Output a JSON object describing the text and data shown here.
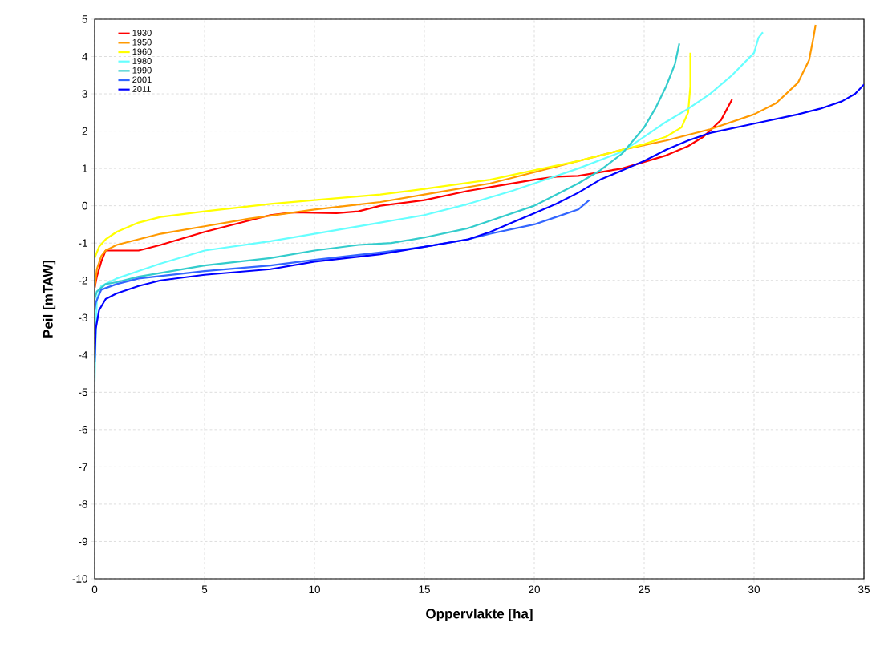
{
  "chart_data": {
    "type": "line",
    "xlabel": "Oppervlakte [ha]",
    "ylabel": "Peil [mTAW]",
    "xlim": [
      0,
      35
    ],
    "ylim": [
      -10,
      5
    ],
    "xticks": [
      0,
      5,
      10,
      15,
      20,
      25,
      30,
      35
    ],
    "yticks": [
      -10,
      -9,
      -8,
      -7,
      -6,
      -5,
      -4,
      -3,
      -2,
      -1,
      0,
      1,
      2,
      3,
      4,
      5
    ],
    "grid": true,
    "legend": "top left",
    "marker": "none",
    "line_style": "solid",
    "series": [
      {
        "name": "1930",
        "color": "#ff0000",
        "x": [
          0,
          0.1,
          0.3,
          0.5,
          2,
          3,
          5,
          7,
          8,
          9,
          11,
          12,
          13,
          15,
          17,
          18,
          20,
          21,
          22,
          24,
          26,
          27,
          27.7,
          28.5,
          29.0
        ],
        "values": [
          -2.2,
          -1.9,
          -1.5,
          -1.2,
          -1.2,
          -1.05,
          -0.7,
          -0.4,
          -0.25,
          -0.18,
          -0.2,
          -0.15,
          0.0,
          0.15,
          0.4,
          0.5,
          0.7,
          0.78,
          0.8,
          1.0,
          1.35,
          1.6,
          1.85,
          2.3,
          2.85
        ]
      },
      {
        "name": "1950",
        "color": "#ff9900",
        "x": [
          0,
          0.1,
          0.3,
          0.5,
          1,
          2,
          3,
          5,
          7,
          10,
          13,
          15,
          18,
          20,
          22,
          24,
          26,
          28,
          30,
          31,
          32,
          32.5,
          32.7,
          32.8
        ],
        "values": [
          -2.2,
          -1.7,
          -1.35,
          -1.2,
          -1.05,
          -0.9,
          -0.75,
          -0.55,
          -0.35,
          -0.1,
          0.1,
          0.3,
          0.6,
          0.9,
          1.2,
          1.5,
          1.75,
          2.05,
          2.45,
          2.75,
          3.3,
          3.9,
          4.5,
          4.85
        ]
      },
      {
        "name": "1960",
        "color": "#ffff00",
        "x": [
          0,
          0.2,
          0.5,
          1,
          2,
          3,
          5,
          8,
          10,
          13,
          15,
          18,
          20,
          22,
          24,
          25,
          26,
          26.7,
          27,
          27.1,
          27.1
        ],
        "values": [
          -1.4,
          -1.1,
          -0.9,
          -0.7,
          -0.45,
          -0.3,
          -0.15,
          0.05,
          0.15,
          0.3,
          0.45,
          0.7,
          0.95,
          1.2,
          1.5,
          1.65,
          1.85,
          2.1,
          2.5,
          3.2,
          4.1
        ]
      },
      {
        "name": "1980",
        "color": "#66ffff",
        "x": [
          0,
          0.05,
          0.1,
          0.3,
          1,
          2,
          3,
          5,
          8,
          10,
          13,
          15,
          17,
          19,
          20,
          22,
          24,
          25,
          26,
          27,
          28,
          29,
          30,
          30.2,
          30.4
        ],
        "values": [
          -4.7,
          -3.5,
          -2.5,
          -2.15,
          -1.95,
          -1.75,
          -1.55,
          -1.2,
          -0.95,
          -0.75,
          -0.45,
          -0.25,
          0.05,
          0.4,
          0.6,
          1.0,
          1.45,
          1.85,
          2.25,
          2.6,
          3.0,
          3.5,
          4.1,
          4.5,
          4.65
        ]
      },
      {
        "name": "1990",
        "color": "#33cccc",
        "x": [
          0,
          0.1,
          0.5,
          1,
          2,
          5,
          8,
          10,
          12,
          13.5,
          15,
          17,
          18,
          20,
          21,
          22,
          23,
          24,
          25,
          25.5,
          26,
          26.4,
          26.6
        ],
        "values": [
          -2.5,
          -2.3,
          -2.1,
          -2.05,
          -1.9,
          -1.6,
          -1.4,
          -1.2,
          -1.05,
          -1.0,
          -0.85,
          -0.6,
          -0.4,
          0.0,
          0.3,
          0.6,
          0.95,
          1.4,
          2.1,
          2.6,
          3.2,
          3.8,
          4.35
        ]
      },
      {
        "name": "2001",
        "color": "#3366ff",
        "x": [
          0,
          0.05,
          0.3,
          1,
          2,
          5,
          8,
          10,
          13,
          15,
          17,
          18,
          20,
          21,
          22,
          22.5
        ],
        "values": [
          -2.8,
          -2.6,
          -2.25,
          -2.1,
          -1.95,
          -1.75,
          -1.6,
          -1.45,
          -1.25,
          -1.1,
          -0.9,
          -0.75,
          -0.5,
          -0.3,
          -0.1,
          0.15
        ]
      },
      {
        "name": "2011",
        "color": "#0000ff",
        "x": [
          0,
          0.05,
          0.2,
          0.5,
          1,
          2,
          3,
          5,
          8,
          10,
          13,
          15,
          17,
          18,
          19,
          20,
          21,
          22,
          23,
          24,
          25,
          26,
          27,
          28,
          30,
          32,
          33,
          34,
          34.6,
          35
        ],
        "values": [
          -4.2,
          -3.3,
          -2.8,
          -2.5,
          -2.35,
          -2.15,
          -2.0,
          -1.85,
          -1.7,
          -1.5,
          -1.3,
          -1.1,
          -0.9,
          -0.7,
          -0.45,
          -0.2,
          0.05,
          0.35,
          0.7,
          0.95,
          1.2,
          1.5,
          1.75,
          1.95,
          2.2,
          2.45,
          2.6,
          2.8,
          3.0,
          3.25
        ]
      }
    ]
  }
}
